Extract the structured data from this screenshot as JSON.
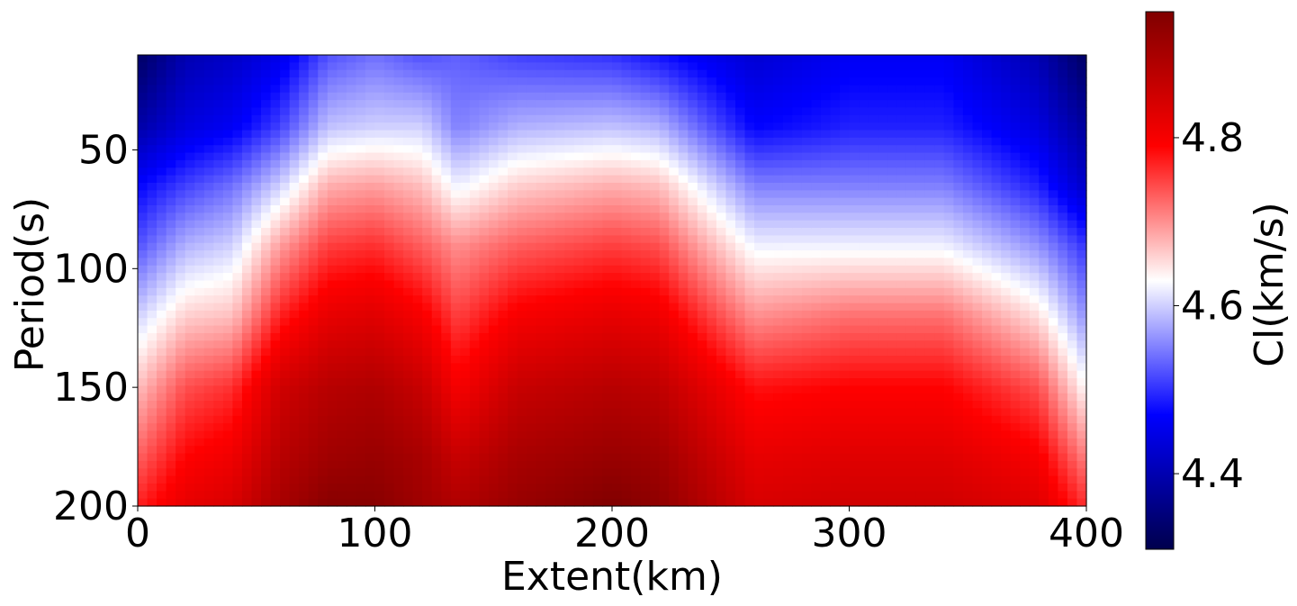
{
  "chart_data": {
    "type": "heatmap",
    "xlabel": "Extent(km)",
    "ylabel": "Period(s)",
    "xlim": [
      0,
      400
    ],
    "ylim": [
      200,
      10
    ],
    "y_inverted": true,
    "x_ticks": [
      {
        "value": 0,
        "label": "0"
      },
      {
        "value": 100,
        "label": "100"
      },
      {
        "value": 200,
        "label": "200"
      },
      {
        "value": 300,
        "label": "300"
      },
      {
        "value": 400,
        "label": "400"
      }
    ],
    "y_ticks": [
      {
        "value": 50,
        "label": "50"
      },
      {
        "value": 100,
        "label": "100"
      },
      {
        "value": 150,
        "label": "150"
      },
      {
        "value": 200,
        "label": "200"
      }
    ],
    "grid": false,
    "colorbar": {
      "label": "Cl(km/s)",
      "vmin": 4.31,
      "vmax": 4.95,
      "ticks": [
        {
          "value": 4.4,
          "label": "4.4"
        },
        {
          "value": 4.6,
          "label": "4.6"
        },
        {
          "value": 4.8,
          "label": "4.8"
        }
      ],
      "colormap": [
        "#00004c",
        "#0000ff",
        "#ffffff",
        "#ff0000",
        "#800000"
      ],
      "position": "right"
    },
    "grid_x": [
      0,
      20,
      40,
      60,
      80,
      100,
      120,
      135,
      160,
      200,
      220,
      260,
      300,
      340,
      380,
      400
    ],
    "grid_period": [
      10,
      40,
      65,
      90,
      120,
      150,
      180,
      200
    ],
    "values": [
      [
        4.33,
        4.39,
        4.47,
        4.52,
        4.6,
        4.67,
        4.73,
        4.77
      ],
      [
        4.4,
        4.44,
        4.51,
        4.58,
        4.66,
        4.74,
        4.79,
        4.82
      ],
      [
        4.42,
        4.46,
        4.54,
        4.6,
        4.67,
        4.76,
        4.81,
        4.84
      ],
      [
        4.45,
        4.51,
        4.6,
        4.69,
        4.77,
        4.85,
        4.88,
        4.9
      ],
      [
        4.52,
        4.59,
        4.68,
        4.75,
        4.82,
        4.88,
        4.91,
        4.94
      ],
      [
        4.54,
        4.6,
        4.69,
        4.76,
        4.83,
        4.89,
        4.92,
        4.94
      ],
      [
        4.52,
        4.6,
        4.67,
        4.73,
        4.8,
        4.86,
        4.9,
        4.91
      ],
      [
        4.53,
        4.55,
        4.62,
        4.7,
        4.75,
        4.8,
        4.86,
        4.89
      ],
      [
        4.51,
        4.58,
        4.66,
        4.73,
        4.8,
        4.86,
        4.9,
        4.92
      ],
      [
        4.5,
        4.59,
        4.68,
        4.75,
        4.82,
        4.88,
        4.92,
        4.95
      ],
      [
        4.48,
        4.58,
        4.67,
        4.74,
        4.81,
        4.87,
        4.91,
        4.93
      ],
      [
        4.43,
        4.47,
        4.55,
        4.62,
        4.7,
        4.78,
        4.82,
        4.84
      ],
      [
        4.46,
        4.49,
        4.55,
        4.62,
        4.72,
        4.79,
        4.83,
        4.85
      ],
      [
        4.46,
        4.49,
        4.55,
        4.62,
        4.72,
        4.79,
        4.83,
        4.85
      ],
      [
        4.4,
        4.44,
        4.49,
        4.56,
        4.65,
        4.74,
        4.8,
        4.83
      ],
      [
        4.33,
        4.38,
        4.42,
        4.5,
        4.56,
        4.63,
        4.71,
        4.76
      ]
    ]
  }
}
